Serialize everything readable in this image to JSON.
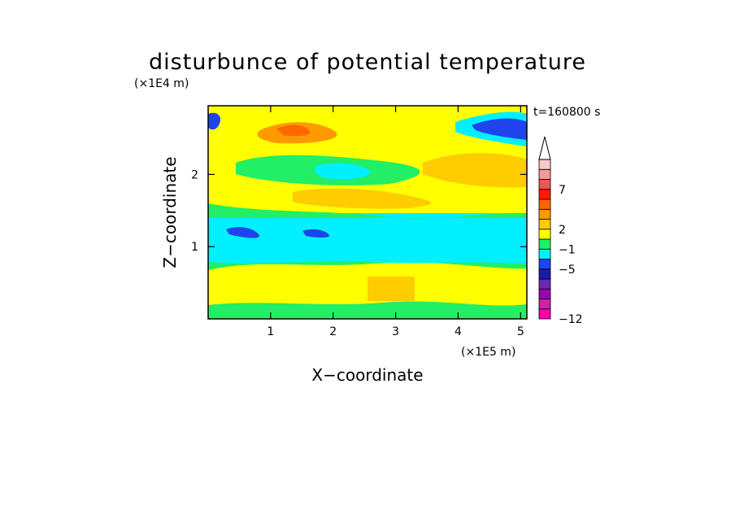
{
  "chart_data": {
    "type": "heatmap",
    "title": "disturbunce of potential temperature",
    "xlabel": "X−coordinate",
    "ylabel": "Z−coordinate",
    "x_scale_note": "(×1E5 m)",
    "y_scale_note": "(×1E4 m)",
    "time_label": "t=160800 s",
    "xlim": [
      0,
      5.1
    ],
    "ylim": [
      0,
      2.95
    ],
    "x_ticks": [
      1,
      2,
      3,
      4,
      5
    ],
    "y_ticks": [
      1,
      2
    ],
    "x_tick_labels": [
      "1",
      "2",
      "3",
      "4",
      "5"
    ],
    "y_tick_labels": [
      "1",
      "2"
    ],
    "colorbar": {
      "levels": [
        {
          "color": "#ff00aa"
        },
        {
          "color": "#cc22aa"
        },
        {
          "color": "#9a00b4"
        },
        {
          "color": "#6a28b4"
        },
        {
          "color": "#1a1aa8"
        },
        {
          "color": "#1f44ee"
        },
        {
          "color": "#00f0ff"
        },
        {
          "color": "#22ee66"
        },
        {
          "color": "#ffff00"
        },
        {
          "color": "#ffcc00"
        },
        {
          "color": "#ff9900"
        },
        {
          "color": "#ff6600"
        },
        {
          "color": "#ff1a00"
        },
        {
          "color": "#ee5555"
        },
        {
          "color": "#f59a9a"
        },
        {
          "color": "#f8c8c8"
        }
      ],
      "tick_labels": [
        {
          "label": "−12",
          "level_index": 0
        },
        {
          "label": "−5",
          "level_index": 5
        },
        {
          "label": "−1",
          "level_index": 7
        },
        {
          "label": "2",
          "level_index": 9
        },
        {
          "label": "7",
          "level_index": 13
        }
      ],
      "extend_max": true
    },
    "regions": [
      {
        "name": "lower-boundary-green",
        "color": "#22ee66",
        "x": [
          0,
          5.1
        ],
        "z": [
          0,
          0.2
        ]
      },
      {
        "name": "lower-yellow-layer",
        "color": "#ffff00",
        "x": [
          0,
          5.1
        ],
        "z": [
          0.2,
          0.55
        ]
      },
      {
        "name": "lower-orange-patch",
        "color": "#ffcc00",
        "x": [
          2.6,
          3.1
        ],
        "z": [
          0.3,
          0.55
        ]
      },
      {
        "name": "lower-green-band",
        "color": "#22ee66",
        "x": [
          0,
          5.1
        ],
        "z": [
          0.55,
          0.72
        ]
      },
      {
        "name": "mid-cyan-layer",
        "color": "#00f0ff",
        "x": [
          0,
          5.1
        ],
        "z": [
          0.72,
          1.42
        ]
      },
      {
        "name": "cyan-green-transition",
        "color": "#22ee66",
        "x": [
          0,
          5.1
        ],
        "z": [
          1.42,
          1.5
        ]
      },
      {
        "name": "upper-yellow-layer",
        "color": "#ffff00",
        "x": [
          0,
          5.1
        ],
        "z": [
          1.5,
          2.95
        ]
      },
      {
        "name": "upper-orange-band",
        "color": "#ffcc00",
        "x": [
          1.0,
          3.0
        ],
        "z": [
          1.6,
          1.8
        ]
      },
      {
        "name": "upper-green-band",
        "color": "#22ee66",
        "x": [
          0.4,
          3.2
        ],
        "z": [
          1.9,
          2.3
        ]
      },
      {
        "name": "upper-cyan-pocket",
        "color": "#00f0ff",
        "x": [
          1.7,
          2.6
        ],
        "z": [
          1.95,
          2.15
        ]
      },
      {
        "name": "upper-orange-cell",
        "color": "#ff9900",
        "x": [
          0.9,
          1.7
        ],
        "z": [
          2.55,
          2.7
        ]
      },
      {
        "name": "upper-right-orange",
        "color": "#ffcc00",
        "x": [
          3.4,
          5.0
        ],
        "z": [
          1.9,
          2.3
        ]
      },
      {
        "name": "top-right-blue",
        "color": "#1f44ee",
        "x": [
          4.1,
          5.1
        ],
        "z": [
          2.5,
          2.8
        ]
      },
      {
        "name": "top-left-blue",
        "color": "#1f44ee",
        "x": [
          0.0,
          0.2
        ],
        "z": [
          2.55,
          2.8
        ]
      },
      {
        "name": "mid-blue-streak-left",
        "color": "#1f44ee",
        "x": [
          0.3,
          0.8
        ],
        "z": [
          1.2,
          1.3
        ]
      },
      {
        "name": "mid-blue-streak-right",
        "color": "#1f44ee",
        "x": [
          1.5,
          1.9
        ],
        "z": [
          1.2,
          1.28
        ]
      }
    ]
  }
}
